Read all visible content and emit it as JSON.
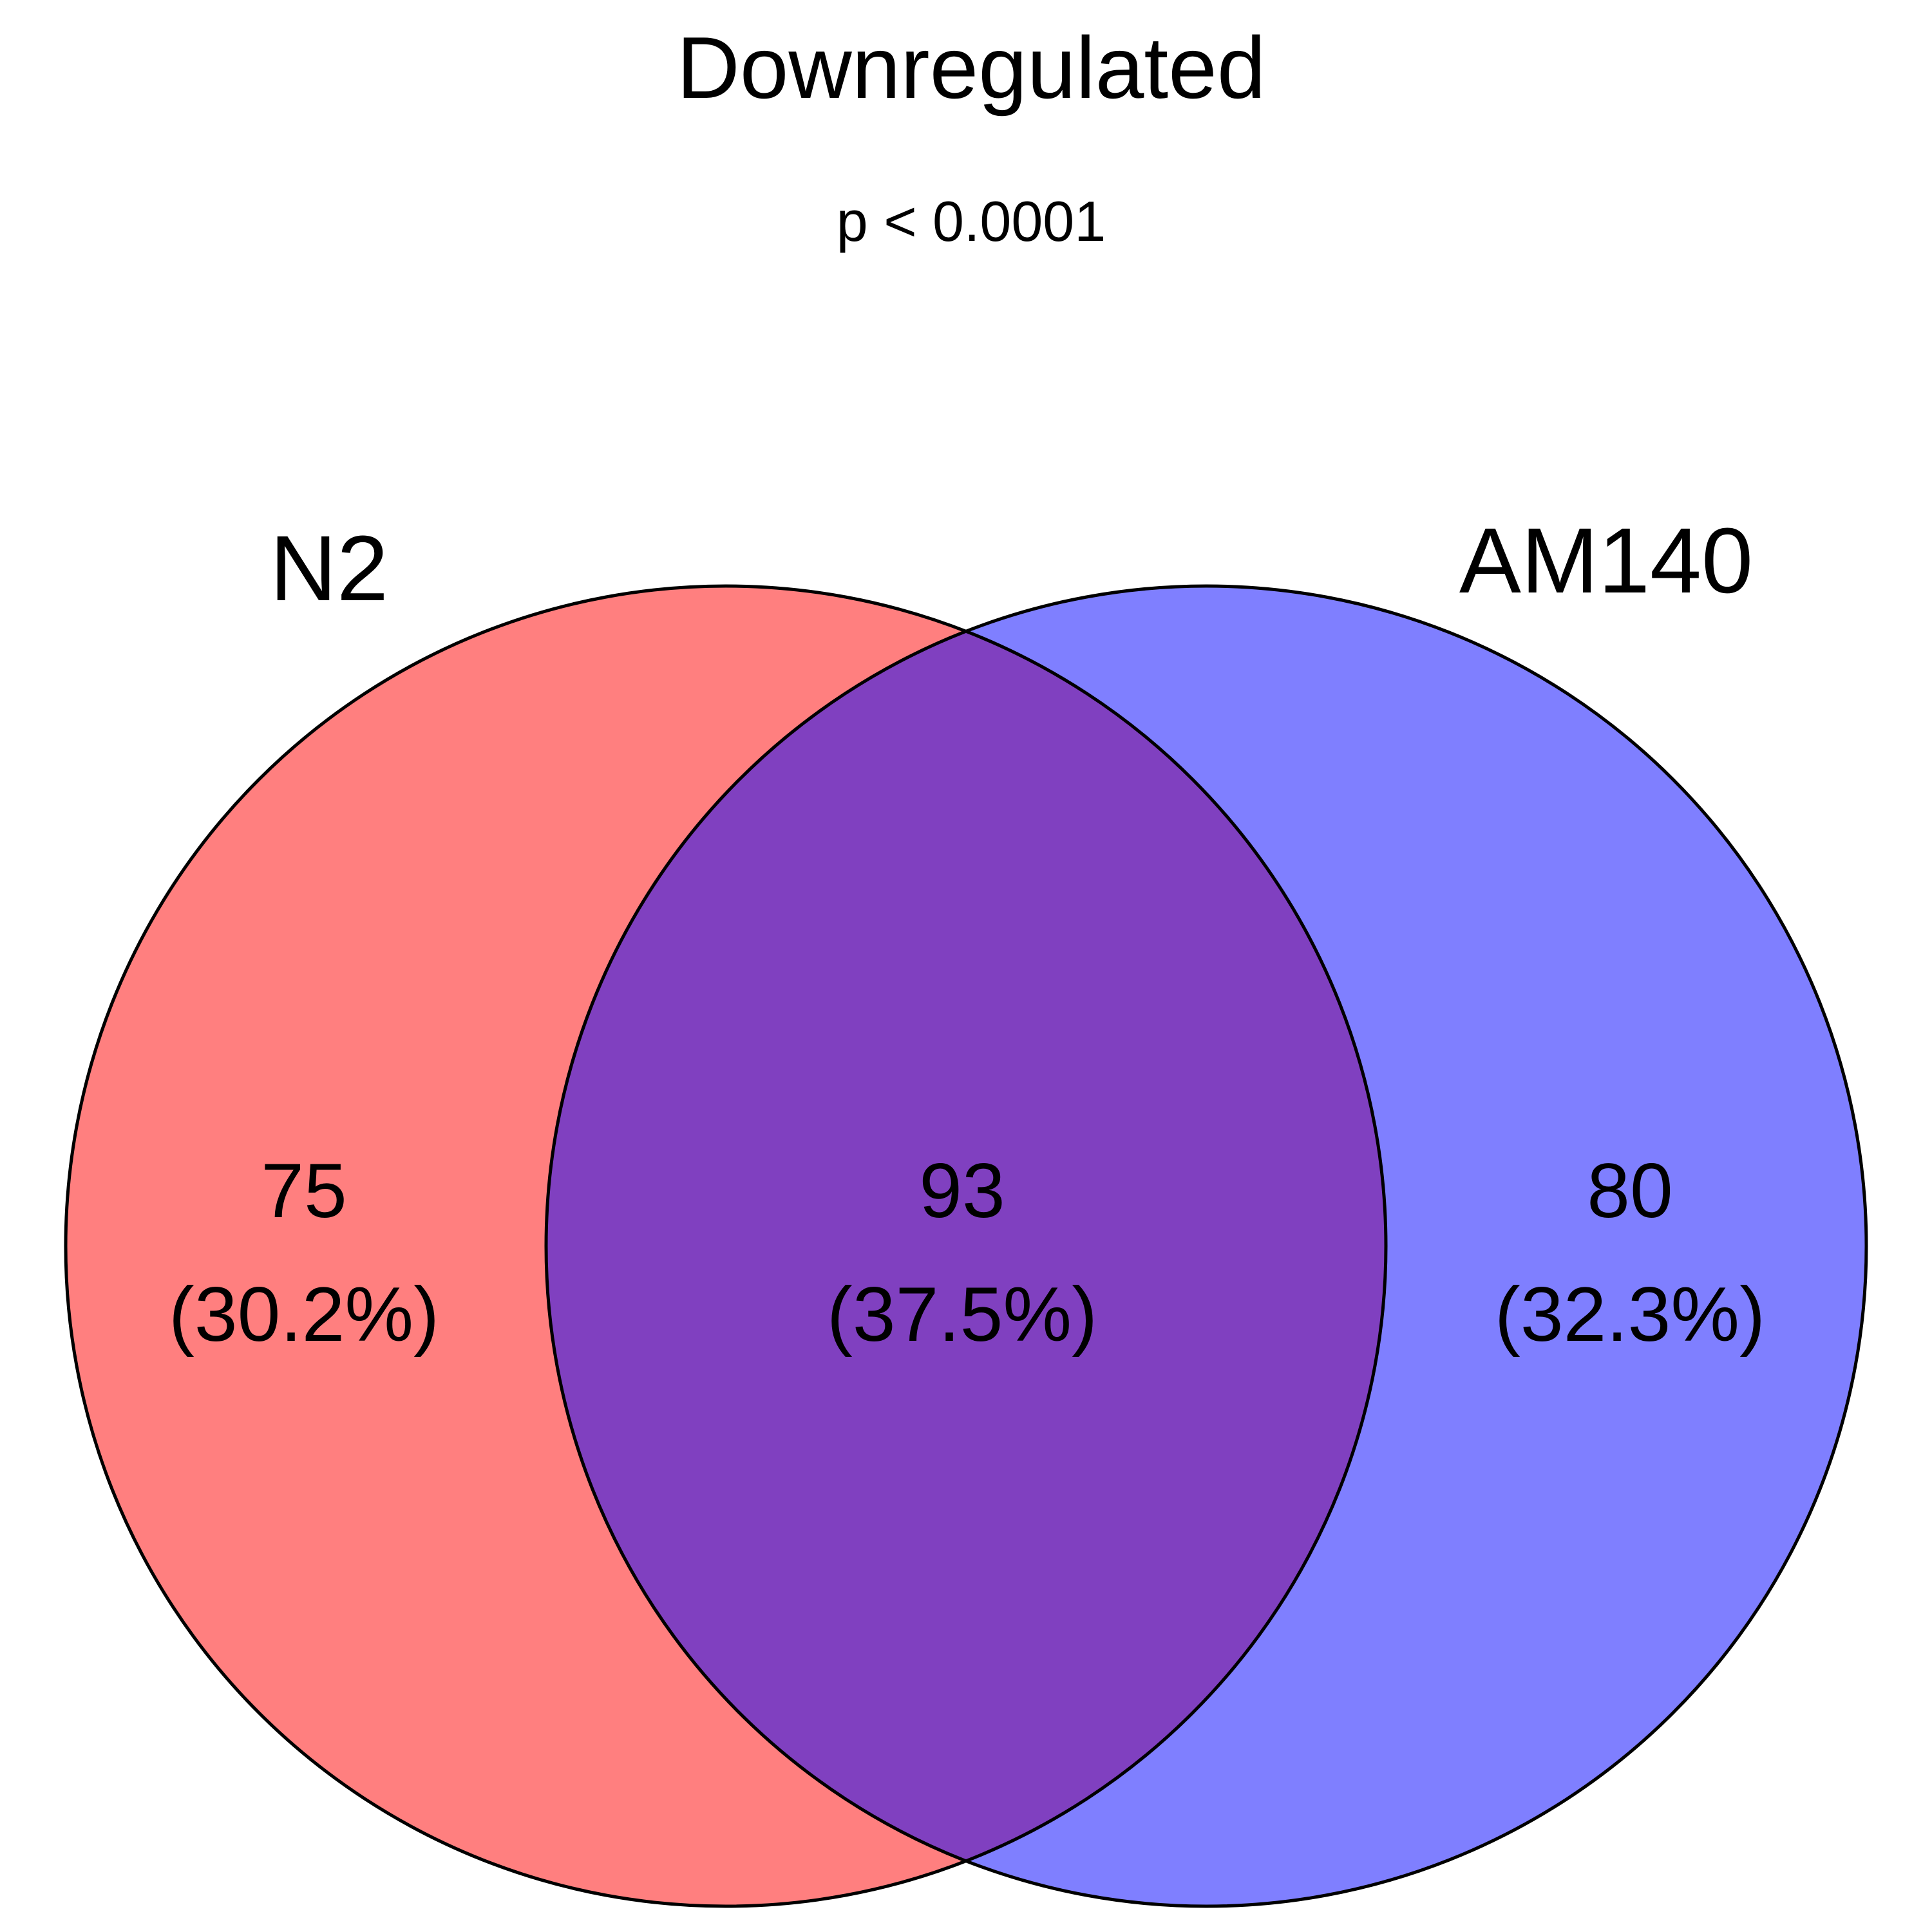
{
  "title": "Downregulated",
  "subtitle": "p < 0.0001",
  "sets": [
    {
      "name": "N2",
      "label_color": "#ff0000",
      "fill_color": "#ff7f7f"
    },
    {
      "name": "AM140",
      "label_color": "#0000ff",
      "fill_color": "#7f7fff"
    }
  ],
  "regions": {
    "n2_only": {
      "count": "75",
      "percent": "(30.2%)"
    },
    "overlap": {
      "count": "93",
      "percent": "(37.5%)",
      "fill_color": "#8040c0"
    },
    "am140_only": {
      "count": "80",
      "percent": "(32.3%)"
    }
  },
  "outline_color": "#000000"
}
